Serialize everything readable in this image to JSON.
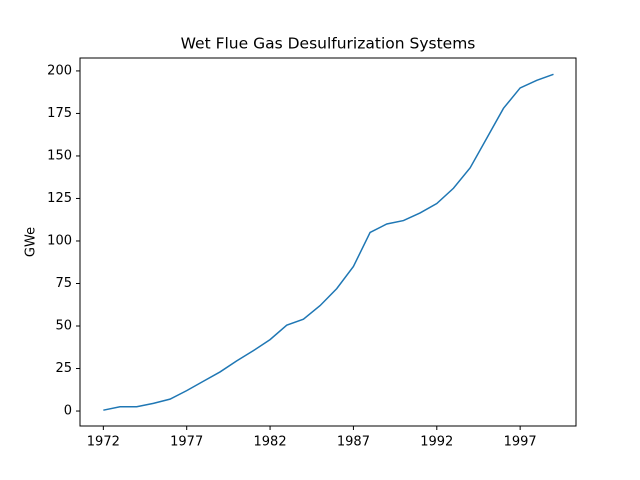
{
  "chart_data": {
    "type": "line",
    "title": "Wet Flue Gas Desulfurization Systems",
    "y_label": "GWe",
    "x": [
      1972,
      1973,
      1974,
      1975,
      1976,
      1977,
      1978,
      1979,
      1980,
      1981,
      1982,
      1983,
      1984,
      1985,
      1986,
      1987,
      1988,
      1989,
      1990,
      1991,
      1992,
      1993,
      1994,
      1995,
      1996,
      1997,
      1998,
      1999
    ],
    "series": [
      {
        "name": "GWe",
        "color": "#1f77b4",
        "values": [
          0.5,
          2.5,
          2.5,
          4.5,
          7,
          12,
          17.5,
          23,
          29.5,
          35.5,
          42,
          50.5,
          54,
          62,
          72,
          85,
          105,
          110,
          112,
          116.5,
          122,
          131,
          143,
          160.5,
          178,
          190,
          194.5,
          198
        ]
      }
    ],
    "xlim": [
      1970.6,
      2000.35
    ],
    "xticks": [
      1972,
      1977,
      1982,
      1987,
      1992,
      1997
    ],
    "ylim": [
      -8.8,
      207.6
    ],
    "yticks": [
      0,
      25,
      50,
      75,
      100,
      125,
      150,
      175,
      200
    ],
    "grid": false
  }
}
